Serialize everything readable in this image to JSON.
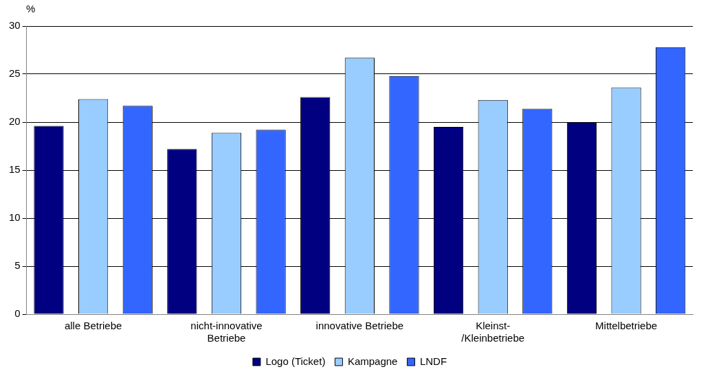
{
  "chart_data": {
    "type": "bar",
    "ylabel": "%",
    "categories": [
      "alle Betriebe",
      "nicht-innovative Betriebe",
      "innovative Betriebe",
      "Kleinst-/Kleinbetriebe",
      "Mittelbetriebe"
    ],
    "series": [
      {
        "name": "Logo (Ticket)",
        "color": "#000080",
        "values": [
          19.6,
          17.2,
          22.6,
          19.5,
          20.0
        ]
      },
      {
        "name": "Kampagne",
        "color": "#99ccff",
        "values": [
          22.4,
          18.9,
          26.7,
          22.3,
          23.6
        ]
      },
      {
        "name": "LNDF",
        "color": "#3366ff",
        "values": [
          21.7,
          19.2,
          24.8,
          21.4,
          27.8
        ]
      }
    ],
    "ylim": [
      0,
      30
    ],
    "yticks": [
      0,
      5,
      10,
      15,
      20,
      25,
      30
    ],
    "grid": "y",
    "legend": "bottom"
  }
}
